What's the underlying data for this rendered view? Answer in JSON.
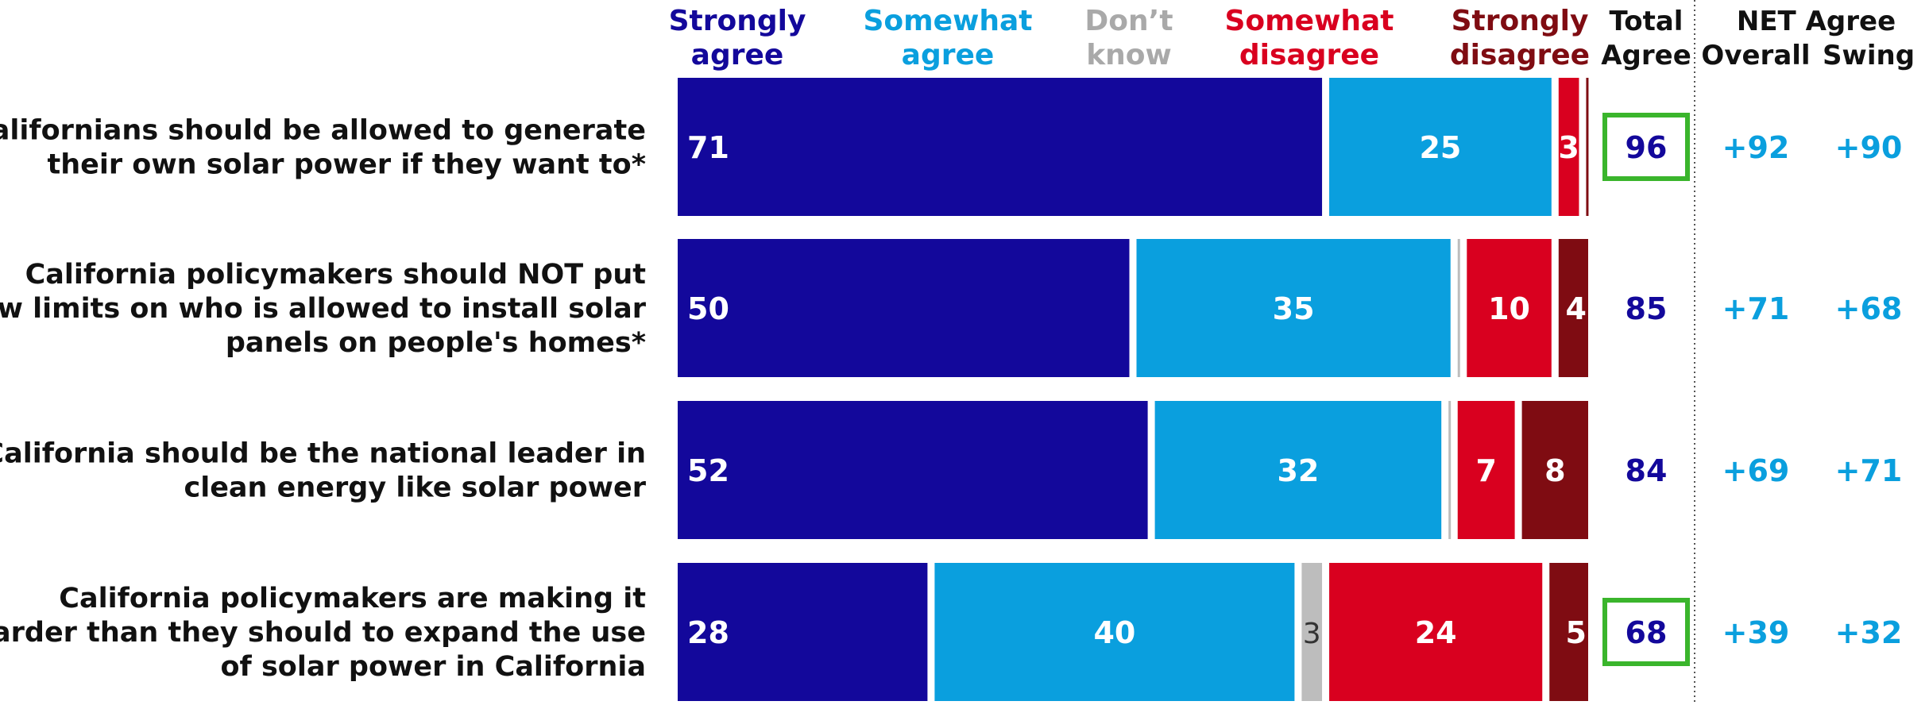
{
  "chart_data": {
    "type": "bar",
    "orientation": "horizontal",
    "stacked": true,
    "legend_placement": "top",
    "categories": [
      "Californians should be allowed to generate their own solar power if they want to*",
      "California policymakers should NOT put new limits on who is allowed to install solar panels on people's homes*",
      "California should be the national leader in clean energy like solar power",
      "California policymakers are making it harder than they should to expand the use of solar power in California"
    ],
    "category_lines": [
      [
        "Californians should be allowed to generate",
        "their own solar power if they want to*"
      ],
      [
        "California policymakers should NOT put",
        "new limits on who is allowed to install solar",
        "panels on people's homes*"
      ],
      [
        "California should be the national leader in",
        "clean energy like solar power"
      ],
      [
        "California policymakers are making it",
        "harder than they should to expand the use",
        "of solar power in California"
      ]
    ],
    "series": [
      {
        "name": "Strongly agree",
        "name_lines": [
          "Strongly",
          "agree"
        ],
        "color": "#13089b",
        "values": [
          71,
          50,
          52,
          28
        ]
      },
      {
        "name": "Somewhat agree",
        "name_lines": [
          "Somewhat",
          "agree"
        ],
        "color": "#0a9fde",
        "values": [
          25,
          35,
          32,
          40
        ]
      },
      {
        "name": "Don't know",
        "name_lines": [
          "Don’t",
          "know"
        ],
        "color": "#bdbdbd",
        "values": [
          0,
          1,
          1,
          3
        ]
      },
      {
        "name": "Somewhat disagree",
        "name_lines": [
          "Somewhat",
          "disagree"
        ],
        "color": "#d9001f",
        "values": [
          3,
          10,
          7,
          24
        ]
      },
      {
        "name": "Strongly disagree",
        "name_lines": [
          "Strongly",
          "disagree"
        ],
        "color": "#7f0c12",
        "values": [
          1,
          4,
          8,
          5
        ]
      }
    ],
    "bar_labels": [
      [
        "71",
        "25",
        "",
        "3",
        ""
      ],
      [
        "50",
        "35",
        "",
        "10",
        "4"
      ],
      [
        "52",
        "32",
        "",
        "7",
        "8"
      ],
      [
        "28",
        "40",
        "3",
        "24",
        "5"
      ]
    ],
    "total_agree_header": [
      "Total",
      "Agree"
    ],
    "total_agree": [
      96,
      85,
      84,
      68
    ],
    "total_highlighted": [
      true,
      false,
      false,
      true
    ],
    "highlight_color": "#3ab52c",
    "net_header": "NET Agree",
    "net_columns": [
      "Overall",
      "Swing"
    ],
    "net_overall": [
      "+92",
      "+71",
      "+69",
      "+39"
    ],
    "net_swing": [
      "+90",
      "+68",
      "+71",
      "+32"
    ]
  }
}
